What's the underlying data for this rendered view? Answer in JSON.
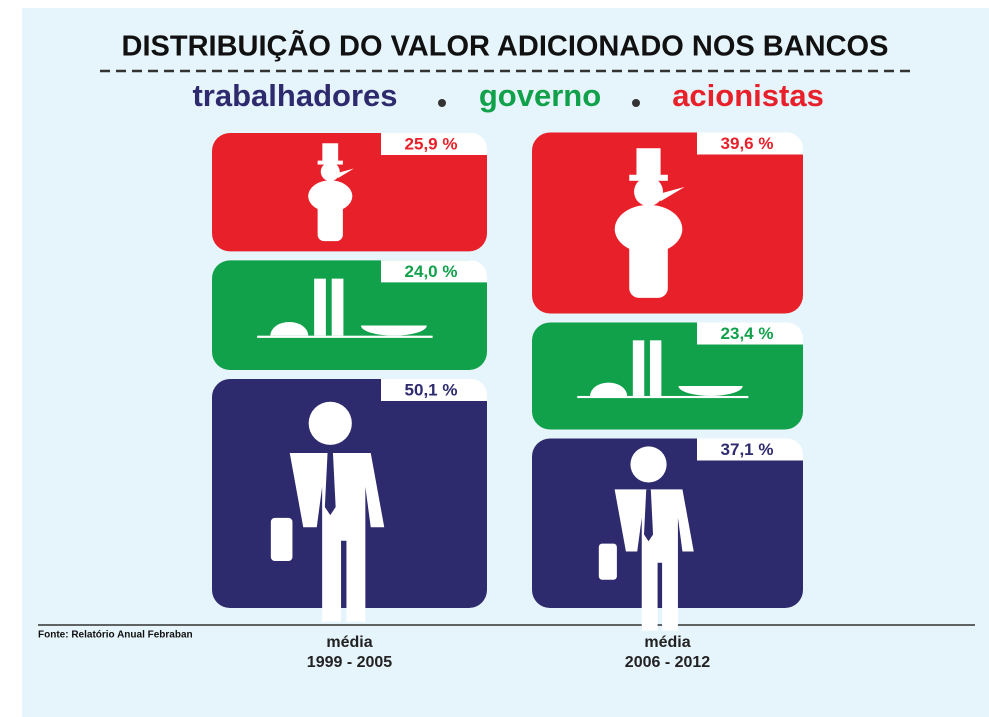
{
  "chart_data": {
    "type": "stacked_bar",
    "title": "DISTRIBUIÇÃO DO VALOR ADICIONADO NOS BANCOS",
    "category_caption": [
      "média",
      "média"
    ],
    "categories": [
      "1999 - 2005",
      "2006 - 2012"
    ],
    "series": [
      {
        "name": "trabalhadores",
        "color": "#2e2a6e",
        "values": [
          50.1,
          37.1
        ],
        "value_labels": [
          "50,1 %",
          "37,1 %"
        ]
      },
      {
        "name": "governo",
        "color": "#12a14b",
        "values": [
          24.0,
          23.4
        ],
        "value_labels": [
          "24,0 %",
          "23,4 %"
        ]
      },
      {
        "name": "acionistas",
        "color": "#e8202a",
        "values": [
          25.9,
          39.6
        ],
        "value_labels": [
          "25,9 %",
          "39,6 %"
        ]
      }
    ],
    "source": "Fonte: Relatório Anual Febraban"
  }
}
